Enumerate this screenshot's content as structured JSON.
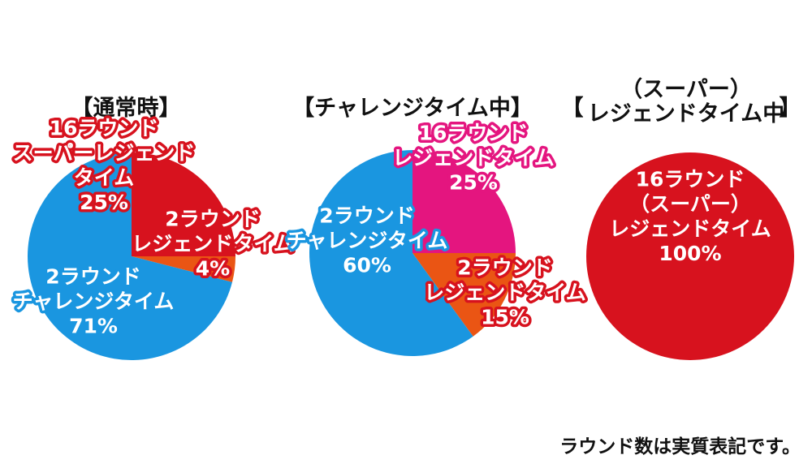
{
  "titles": {
    "normal": "【通常時】",
    "challenge": "【チャレンジタイム中】",
    "super_bracket_left": "【",
    "super_line1": "（スーパー）",
    "super_line2": "レジェンドタイム中",
    "super_bracket_right": "】"
  },
  "footnote": "ラウンド数は実質表記です。",
  "colors": {
    "blue": "#1a96e0",
    "red": "#d7121e",
    "orange": "#ea5514",
    "magenta": "#e4157f"
  },
  "chart_data": [
    {
      "type": "pie",
      "title": "【通常時】",
      "slices": [
        {
          "label": [
            "16ラウンド",
            "スーパーレジェンド",
            "タイム",
            "25%"
          ],
          "value": 25,
          "color": "#d7121e"
        },
        {
          "label": [
            "2ラウンド",
            "レジェンドタイム",
            "4%"
          ],
          "value": 4,
          "color": "#ea5514"
        },
        {
          "label": [
            "2ラウンド",
            "チャレンジタイム",
            "71%"
          ],
          "value": 71,
          "color": "#1a96e0"
        }
      ]
    },
    {
      "type": "pie",
      "title": "【チャレンジタイム中】",
      "slices": [
        {
          "label": [
            "16ラウンド",
            "レジェンドタイム",
            "25%"
          ],
          "value": 25,
          "color": "#e4157f"
        },
        {
          "label": [
            "2ラウンド",
            "レジェンドタイム",
            "15%"
          ],
          "value": 15,
          "color": "#ea5514"
        },
        {
          "label": [
            "2ラウンド",
            "チャレンジタイム",
            "60%"
          ],
          "value": 60,
          "color": "#1a96e0"
        }
      ]
    },
    {
      "type": "pie",
      "title": "【（スーパー）レジェンドタイム中】",
      "slices": [
        {
          "label": [
            "16ラウンド",
            "（スーパー）",
            "レジェンドタイム",
            "100%"
          ],
          "value": 100,
          "color": "#d7121e"
        }
      ]
    }
  ]
}
